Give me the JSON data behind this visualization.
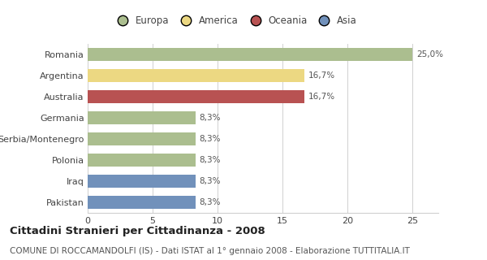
{
  "categories": [
    "Pakistan",
    "Iraq",
    "Polonia",
    "Serbia/Montenegro",
    "Germania",
    "Australia",
    "Argentina",
    "Romania"
  ],
  "values": [
    8.3,
    8.3,
    8.3,
    8.3,
    8.3,
    16.7,
    16.7,
    25.0
  ],
  "colors": [
    "#7191bb",
    "#7191bb",
    "#abbe8f",
    "#abbe8f",
    "#abbe8f",
    "#b85252",
    "#ecd882",
    "#abbe8f"
  ],
  "labels": [
    "8,3%",
    "8,3%",
    "8,3%",
    "8,3%",
    "8,3%",
    "16,7%",
    "16,7%",
    "25,0%"
  ],
  "legend_items": [
    {
      "label": "Europa",
      "color": "#abbe8f"
    },
    {
      "label": "America",
      "color": "#ecd882"
    },
    {
      "label": "Oceania",
      "color": "#b85252"
    },
    {
      "label": "Asia",
      "color": "#7191bb"
    }
  ],
  "xlim": [
    0,
    27
  ],
  "xticks": [
    0,
    5,
    10,
    15,
    20,
    25
  ],
  "title": "Cittadini Stranieri per Cittadinanza - 2008",
  "subtitle": "COMUNE DI ROCCAMANDOLFI (IS) - Dati ISTAT al 1° gennaio 2008 - Elaborazione TUTTITALIA.IT",
  "bg_color": "#ffffff",
  "grid_color": "#d0d0d0",
  "bar_height": 0.62,
  "label_fontsize": 7.5,
  "title_fontsize": 9.5,
  "subtitle_fontsize": 7.5,
  "ytick_fontsize": 8,
  "xtick_fontsize": 8,
  "legend_fontsize": 8.5
}
